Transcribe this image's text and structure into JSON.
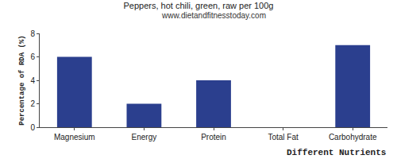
{
  "chart_data": {
    "type": "bar",
    "title": "Peppers, hot chili, green, raw per 100g",
    "subtitle": "www.dietandfitnesstoday.com",
    "x_label": "Different Nutrients",
    "y_label": "Percentage of RDA (%)",
    "categories": [
      "Magnesium",
      "Energy",
      "Protein",
      "Total Fat",
      "Carbohydrate"
    ],
    "values": [
      6,
      2,
      4,
      0,
      7
    ],
    "color": "#2b3f8e",
    "ylim": [
      0,
      8
    ],
    "yticks": [
      0,
      2,
      4,
      6,
      8
    ],
    "grid": false
  }
}
